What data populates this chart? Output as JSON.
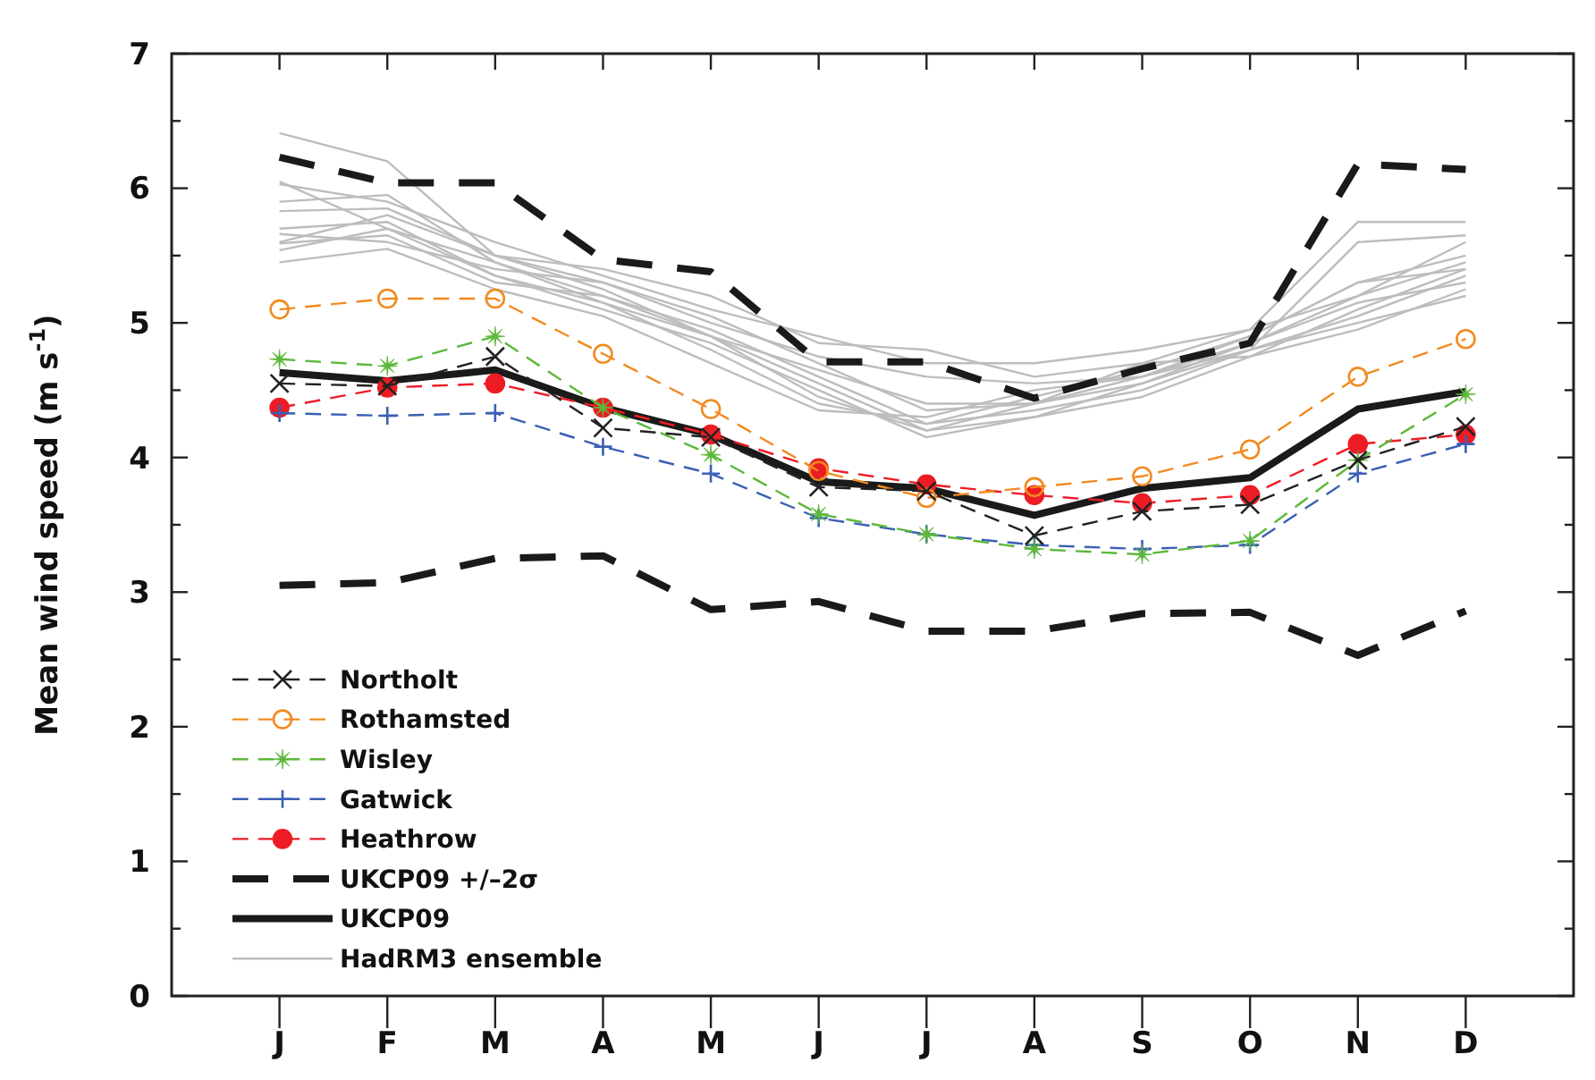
{
  "chart_data": {
    "type": "line",
    "ylabel": "Mean wind speed (m s$^{-1}$)",
    "categories": [
      "J",
      "F",
      "M",
      "A",
      "M",
      "J",
      "J",
      "A",
      "S",
      "O",
      "N",
      "D"
    ],
    "ylim": [
      0,
      7
    ],
    "yticks": [
      0,
      {
        "value": 0.5,
        "label": null
      },
      1,
      {
        "value": 1.5,
        "label": null
      },
      2,
      {
        "value": 2.5,
        "label": null
      },
      3,
      {
        "value": 3.5,
        "label": null
      },
      4,
      {
        "value": 4.5,
        "label": null
      },
      5,
      {
        "value": 5.5,
        "label": null
      },
      6,
      {
        "value": 6.5,
        "label": null
      },
      7
    ],
    "grid": false,
    "legend": "bottom left",
    "series": [
      {
        "name": "Northolt",
        "color": "#222222",
        "line_style": "dashed",
        "marker": "cross",
        "values": [
          4.55,
          4.53,
          4.75,
          4.22,
          4.15,
          3.78,
          3.75,
          3.42,
          3.6,
          3.65,
          3.98,
          4.23
        ]
      },
      {
        "name": "Rothamsted",
        "color": "#f28a1f",
        "line_style": "dashed",
        "marker": "circle-open",
        "values": [
          5.1,
          5.18,
          5.18,
          4.77,
          4.36,
          3.9,
          3.7,
          3.78,
          3.86,
          4.06,
          4.6,
          4.88
        ]
      },
      {
        "name": "Wisley",
        "color": "#5cb83a",
        "line_style": "dashed",
        "marker": "star",
        "values": [
          4.73,
          4.68,
          4.9,
          4.37,
          4.02,
          3.58,
          3.43,
          3.32,
          3.28,
          3.38,
          3.98,
          4.47
        ]
      },
      {
        "name": "Gatwick",
        "color": "#3a5fb5",
        "line_style": "dashed",
        "marker": "plus",
        "values": [
          4.33,
          4.31,
          4.33,
          4.08,
          3.88,
          3.55,
          3.43,
          3.35,
          3.32,
          3.35,
          3.88,
          4.1
        ]
      },
      {
        "name": "Heathrow",
        "color": "#ed1c24",
        "line_style": "dashed",
        "marker": "circle",
        "values": [
          4.37,
          4.52,
          4.55,
          4.37,
          4.17,
          3.92,
          3.8,
          3.72,
          3.66,
          3.72,
          4.1,
          4.17
        ]
      },
      {
        "name": "UKCP09 +/–2σ",
        "color": "#1a1a1a",
        "line_style": "dashed",
        "marker": "none",
        "values": [
          6.23,
          6.04,
          6.04,
          5.47,
          5.38,
          4.71,
          4.71,
          4.44,
          4.66,
          4.85,
          6.18,
          6.14
        ]
      },
      {
        "color": "#1a1a1a",
        "line_style": "dashed",
        "marker": "none",
        "values": [
          3.05,
          3.07,
          3.25,
          3.27,
          2.87,
          2.93,
          2.71,
          2.71,
          2.84,
          2.85,
          2.53,
          2.86
        ]
      },
      {
        "name": "UKCP09",
        "color": "#1a1a1a",
        "line_style": "solid",
        "marker": "none",
        "values": [
          4.63,
          4.57,
          4.65,
          4.37,
          4.17,
          3.82,
          3.77,
          3.57,
          3.77,
          3.85,
          4.36,
          4.49
        ]
      },
      {
        "name": "HadRM3 ensemble",
        "color": "#bdbdbd",
        "line_style": "solid",
        "marker": "none",
        "values": [
          6.41,
          6.2,
          5.5,
          5.3,
          5.0,
          4.75,
          4.6,
          4.55,
          4.6,
          4.9,
          5.3,
          5.5
        ]
      },
      {
        "color": "#bdbdbd",
        "line_style": "solid",
        "marker": "none",
        "values": [
          6.03,
          5.9,
          5.6,
          5.35,
          5.1,
          4.9,
          4.7,
          4.7,
          4.8,
          4.95,
          5.75,
          5.75
        ]
      },
      {
        "color": "#bdbdbd",
        "line_style": "solid",
        "marker": "none",
        "values": [
          5.9,
          5.95,
          5.45,
          5.2,
          4.95,
          4.6,
          4.25,
          4.35,
          4.5,
          4.8,
          5.6,
          5.65
        ]
      },
      {
        "color": "#bdbdbd",
        "line_style": "solid",
        "marker": "none",
        "values": [
          5.83,
          5.85,
          5.5,
          5.25,
          4.9,
          4.55,
          4.2,
          4.3,
          4.55,
          4.85,
          5.2,
          5.45
        ]
      },
      {
        "color": "#bdbdbd",
        "line_style": "solid",
        "marker": "none",
        "values": [
          5.7,
          5.75,
          5.35,
          5.1,
          4.85,
          4.5,
          4.15,
          4.3,
          4.45,
          4.75,
          5.1,
          5.4
        ]
      },
      {
        "color": "#bdbdbd",
        "line_style": "solid",
        "marker": "none",
        "values": [
          5.66,
          5.6,
          5.4,
          5.3,
          5.05,
          4.7,
          4.35,
          4.4,
          4.6,
          4.8,
          5.05,
          5.35
        ]
      },
      {
        "color": "#bdbdbd",
        "line_style": "solid",
        "marker": "none",
        "values": [
          5.59,
          5.65,
          5.3,
          5.2,
          4.9,
          4.45,
          4.2,
          4.4,
          4.7,
          4.95,
          5.2,
          5.6
        ]
      },
      {
        "color": "#bdbdbd",
        "line_style": "solid",
        "marker": "none",
        "values": [
          5.54,
          5.7,
          5.35,
          5.15,
          4.8,
          4.4,
          4.25,
          4.45,
          4.65,
          4.9,
          5.3,
          5.4
        ]
      },
      {
        "color": "#bdbdbd",
        "line_style": "solid",
        "marker": "none",
        "values": [
          5.45,
          5.55,
          5.25,
          5.05,
          4.7,
          4.35,
          4.3,
          4.5,
          4.6,
          4.85,
          5.15,
          5.3
        ]
      },
      {
        "color": "#bdbdbd",
        "line_style": "solid",
        "marker": "none",
        "values": [
          5.6,
          5.8,
          5.5,
          5.4,
          5.2,
          4.85,
          4.8,
          4.6,
          4.7,
          4.75,
          4.95,
          5.25
        ]
      },
      {
        "color": "#bdbdbd",
        "line_style": "solid",
        "marker": "none",
        "values": [
          6.05,
          5.7,
          5.45,
          5.15,
          4.9,
          4.65,
          4.4,
          4.4,
          4.55,
          4.8,
          5.0,
          5.2
        ]
      }
    ]
  }
}
